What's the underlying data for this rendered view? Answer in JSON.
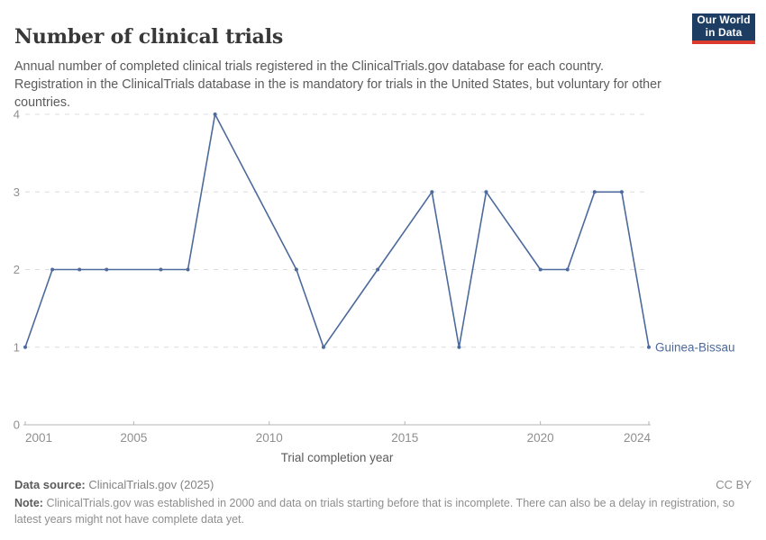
{
  "header": {
    "title": "Number of clinical trials",
    "subtitle": "Annual number of completed clinical trials registered in the ClinicalTrials.gov database for each country. Registration in the ClinicalTrials database in the is mandatory for trials in the United States, but voluntary for other countries.",
    "logo": {
      "line1": "Our World",
      "line2": "in Data",
      "bg_color": "#1d3d63",
      "accent_color": "#dc3a2f"
    }
  },
  "chart_data": {
    "type": "line",
    "title": "Number of clinical trials",
    "xlabel": "Trial completion year",
    "ylabel": "",
    "xlim": [
      2001,
      2024
    ],
    "ylim": [
      0,
      4
    ],
    "x_ticks": [
      2001,
      2005,
      2010,
      2015,
      2020,
      2024
    ],
    "y_ticks": [
      0,
      1,
      2,
      3,
      4
    ],
    "grid": "horizontal-dashed",
    "legend_position": "end-of-line-label",
    "series": [
      {
        "name": "Guinea-Bissau",
        "color": "#4C6A9C",
        "points": [
          [
            2001,
            1
          ],
          [
            2002,
            2
          ],
          [
            2003,
            2
          ],
          [
            2004,
            2
          ],
          [
            2006,
            2
          ],
          [
            2007,
            2
          ],
          [
            2008,
            4
          ],
          [
            2011,
            2
          ],
          [
            2012,
            1
          ],
          [
            2014,
            2
          ],
          [
            2016,
            3
          ],
          [
            2017,
            1
          ],
          [
            2018,
            3
          ],
          [
            2020,
            2
          ],
          [
            2021,
            2
          ],
          [
            2022,
            3
          ],
          [
            2023,
            3
          ],
          [
            2024,
            1
          ]
        ]
      }
    ],
    "colors": {
      "gridline": "#dcdcdc",
      "axis": "#b3b3b3",
      "tick_label": "#8f8f8f",
      "axis_title": "#5b5b5b"
    }
  },
  "footer": {
    "data_source_label": "Data source:",
    "data_source_value": "ClinicalTrials.gov (2025)",
    "license": "CC BY",
    "note_label": "Note:",
    "note_text": "ClinicalTrials.gov was established in 2000 and data on trials starting before that is incomplete. There can also be a delay in registration, so latest years might not have complete data yet."
  }
}
